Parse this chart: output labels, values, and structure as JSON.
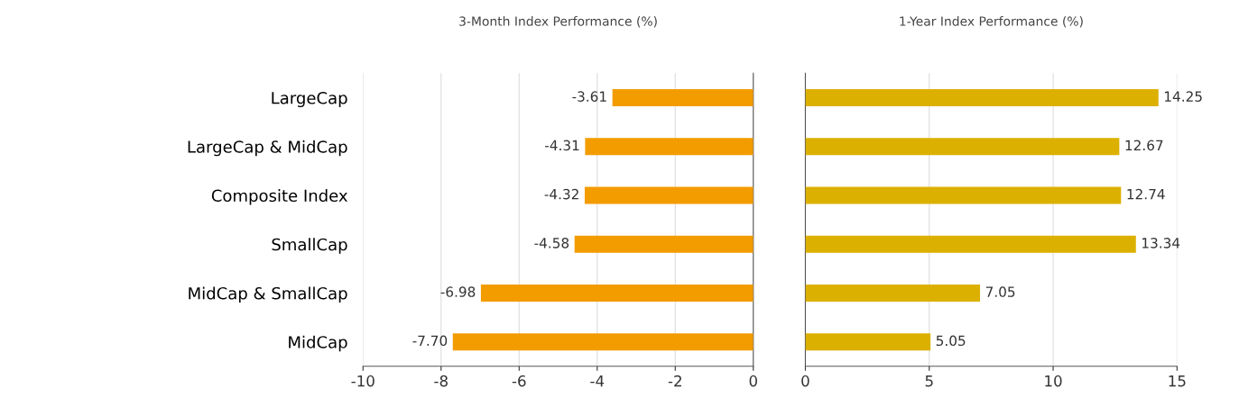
{
  "chart_data": [
    {
      "type": "bar",
      "orientation": "horizontal",
      "title": "3-Month Index Performance (%)",
      "categories": [
        "LargeCap",
        "LargeCap & MidCap",
        "Composite Index",
        "SmallCap",
        "MidCap & SmallCap",
        "MidCap"
      ],
      "values": [
        -3.61,
        -4.31,
        -4.32,
        -4.58,
        -6.98,
        -7.7
      ],
      "value_labels": [
        "-3.61",
        "-4.31",
        "-4.32",
        "-4.58",
        "-6.98",
        "-7.70"
      ],
      "color": "#f39c00",
      "xlim": [
        -10,
        0
      ],
      "xticks": [
        -10,
        -8,
        -6,
        -4,
        -2,
        0
      ],
      "grid": "x"
    },
    {
      "type": "bar",
      "orientation": "horizontal",
      "title": "1-Year Index Performance (%)",
      "categories": [
        null,
        null,
        null,
        null,
        null,
        null
      ],
      "values": [
        14.25,
        12.67,
        12.74,
        13.34,
        7.05,
        5.05
      ],
      "value_labels": [
        "14.25",
        "12.67",
        "12.74",
        "13.34",
        "7.05",
        "5.05"
      ],
      "color": "#dcb000",
      "xlim": [
        0,
        15
      ],
      "xticks": [
        0,
        5,
        10,
        15
      ],
      "grid": "x",
      "tick_labels": "x"
    }
  ]
}
